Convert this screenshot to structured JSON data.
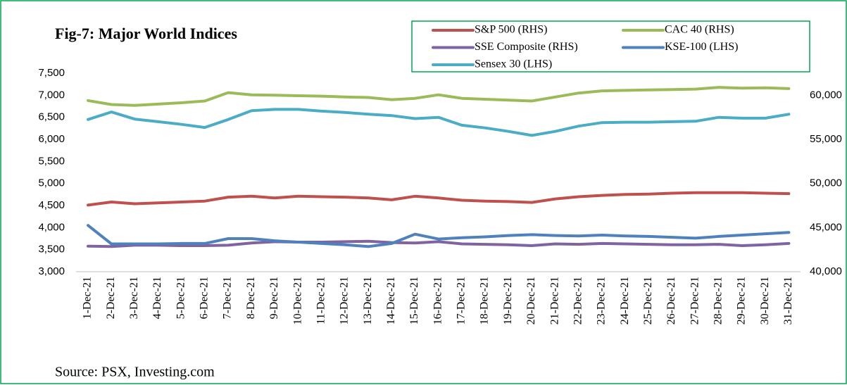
{
  "chart_data": {
    "type": "line",
    "title": "Fig-7: Major World Indices",
    "source": "Source: PSX, Investing.com",
    "categories": [
      "1-Dec-21",
      "2-Dec-21",
      "3-Dec-21",
      "4-Dec-21",
      "5-Dec-21",
      "6-Dec-21",
      "7-Dec-21",
      "8-Dec-21",
      "9-Dec-21",
      "10-Dec-21",
      "11-Dec-21",
      "12-Dec-21",
      "13-Dec-21",
      "14-Dec-21",
      "15-Dec-21",
      "16-Dec-21",
      "17-Dec-21",
      "18-Dec-21",
      "19-Dec-21",
      "20-Dec-21",
      "21-Dec-21",
      "22-Dec-21",
      "23-Dec-21",
      "24-Dec-21",
      "25-Dec-21",
      "26-Dec-21",
      "27-Dec-21",
      "28-Dec-21",
      "29-Dec-21",
      "30-Dec-21",
      "31-Dec-21"
    ],
    "series": [
      {
        "name": "S&P 500 (RHS)",
        "color": "#c0504d",
        "axis": "y",
        "values": [
          4510,
          4580,
          4540,
          4560,
          4580,
          4600,
          4690,
          4710,
          4670,
          4710,
          4700,
          4690,
          4670,
          4630,
          4710,
          4670,
          4620,
          4600,
          4590,
          4570,
          4650,
          4700,
          4730,
          4750,
          4760,
          4780,
          4790,
          4790,
          4790,
          4780,
          4770
        ]
      },
      {
        "name": "CAC 40 (RHS)",
        "color": "#9bbb59",
        "axis": "y",
        "values": [
          6880,
          6790,
          6770,
          6800,
          6830,
          6870,
          7060,
          7010,
          7000,
          6990,
          6980,
          6960,
          6950,
          6900,
          6930,
          7010,
          6930,
          6910,
          6890,
          6870,
          6960,
          7050,
          7100,
          7110,
          7120,
          7130,
          7140,
          7180,
          7160,
          7170,
          7150
        ]
      },
      {
        "name": "SSE Composite (RHS)",
        "color": "#8064a2",
        "axis": "y",
        "values": [
          3580,
          3570,
          3600,
          3600,
          3590,
          3590,
          3600,
          3650,
          3680,
          3670,
          3670,
          3680,
          3690,
          3660,
          3650,
          3680,
          3630,
          3620,
          3610,
          3590,
          3630,
          3620,
          3640,
          3630,
          3620,
          3610,
          3610,
          3620,
          3590,
          3610,
          3640
        ]
      },
      {
        "name": "KSE-100 (LHS)",
        "color": "#4f81bd",
        "axis": "y2",
        "values": [
          45250,
          43150,
          43150,
          43150,
          43200,
          43200,
          43750,
          43750,
          43500,
          43350,
          43200,
          43050,
          42850,
          43200,
          44250,
          43700,
          43850,
          43950,
          44100,
          44200,
          44100,
          44050,
          44150,
          44050,
          44000,
          43900,
          43800,
          44000,
          44150,
          44300,
          44450
        ]
      },
      {
        "name": "Sensex 30 (LHS)",
        "color": "#4bacc6",
        "axis": "y2",
        "values": [
          57250,
          58100,
          57300,
          57000,
          56700,
          56350,
          57250,
          58250,
          58400,
          58400,
          58200,
          58050,
          57850,
          57700,
          57350,
          57500,
          56600,
          56300,
          55900,
          55450,
          55900,
          56500,
          56900,
          56950,
          56950,
          57000,
          57050,
          57500,
          57400,
          57400,
          57850
        ]
      }
    ],
    "ylim": [
      3000,
      7500
    ],
    "yticks": [
      {
        "value": 3000,
        "label": "3,000"
      },
      {
        "value": 3500,
        "label": "3,500"
      },
      {
        "value": 4000,
        "label": "4,000"
      },
      {
        "value": 4500,
        "label": "4,500"
      },
      {
        "value": 5000,
        "label": "5,000"
      },
      {
        "value": 5500,
        "label": "5,500"
      },
      {
        "value": 6000,
        "label": "6,000"
      },
      {
        "value": 6500,
        "label": "6,500"
      },
      {
        "value": 7000,
        "label": "7,000"
      },
      {
        "value": 7500,
        "label": "7,500"
      }
    ],
    "y2lim": [
      40000,
      62500
    ],
    "y2ticks": [
      {
        "value": 40000,
        "label": "40,000"
      },
      {
        "value": 45000,
        "label": "45,000"
      },
      {
        "value": 50000,
        "label": "50,000"
      },
      {
        "value": 55000,
        "label": "55,000"
      },
      {
        "value": 60000,
        "label": "60,000"
      }
    ]
  }
}
